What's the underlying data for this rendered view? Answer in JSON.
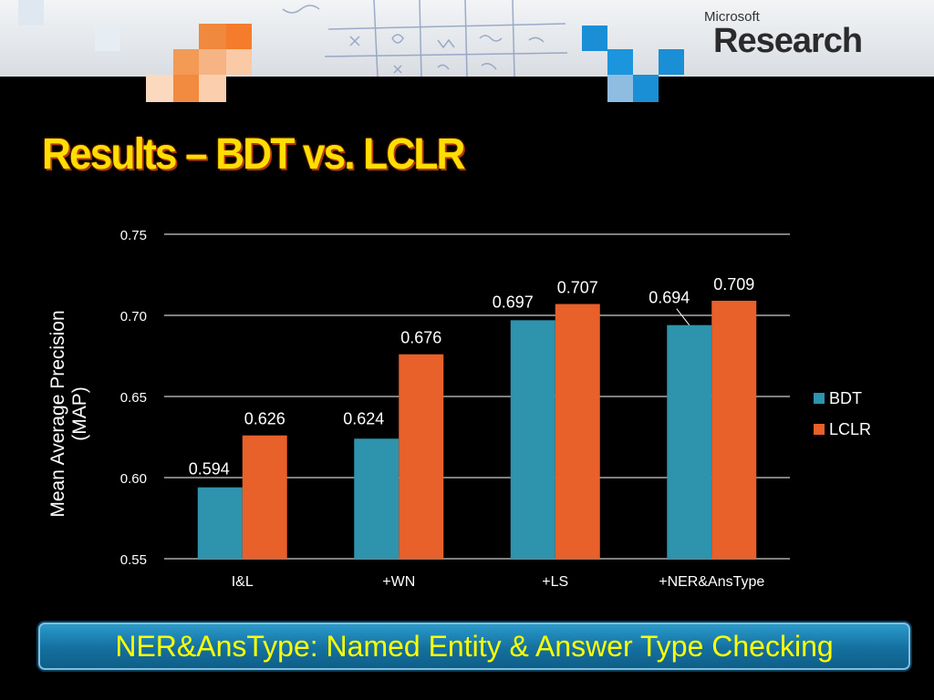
{
  "brand": {
    "small": "Microsoft",
    "big": "Research"
  },
  "slide": {
    "title": "Results – BDT vs. LCLR",
    "footer": "NER&AnsType: Named Entity & Answer Type Checking"
  },
  "chart_data": {
    "type": "bar",
    "categories": [
      "I&L",
      "+WN",
      "+LS",
      "+NER&AnsType"
    ],
    "series": [
      {
        "name": "BDT",
        "values": [
          0.594,
          0.624,
          0.697,
          0.694
        ],
        "labels": [
          "0.594",
          "0.624",
          "0.697",
          "0.694"
        ],
        "color": "#2e93ad"
      },
      {
        "name": "LCLR",
        "values": [
          0.626,
          0.676,
          0.707,
          0.709
        ],
        "labels": [
          "0.626",
          "0.676",
          "0.707",
          "0.709"
        ],
        "color": "#e8602a"
      }
    ],
    "yticks": [
      "0.55",
      "0.60",
      "0.65",
      "0.70",
      "0.75"
    ],
    "ylim": [
      0.55,
      0.75
    ],
    "ylabel": "Mean Average Precision (MAP)",
    "ylabel_lines": [
      "Mean Average Precision",
      "(MAP)"
    ],
    "grid": true,
    "legend": "right"
  },
  "colors": {
    "title": "#ffde00",
    "footer_text": "#ffff00",
    "bdt": "#2e93ad",
    "lclr": "#e8602a",
    "background": "#000000"
  }
}
